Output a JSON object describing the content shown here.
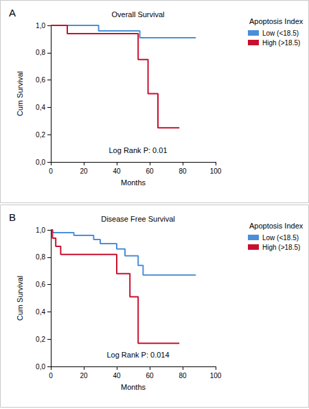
{
  "chart_data": [
    {
      "type": "line",
      "label": "A",
      "title": "Overall Survival",
      "x_label": "Months",
      "y_label": "Cum Survival",
      "legend_title": "Apoptosis Index",
      "legend": "right",
      "annotations": [
        "Log Rank P: 0.01"
      ],
      "line_style": "step",
      "grid": false,
      "xlim": [
        0,
        100
      ],
      "xticks": [
        0,
        20,
        40,
        60,
        80,
        100
      ],
      "ylim": [
        0,
        1
      ],
      "yticks": [
        {
          "value": 0,
          "label": "0,0"
        },
        {
          "value": 0.2,
          "label": "0,2"
        },
        {
          "value": 0.4,
          "label": "0,4"
        },
        {
          "value": 0.6,
          "label": "0,6"
        },
        {
          "value": 0.8,
          "label": "0,8"
        },
        {
          "value": 1,
          "label": "1,0"
        }
      ],
      "series": [
        {
          "name": "Low (<18.5)",
          "color": "#4a8fd8",
          "x": [
            0,
            29,
            54,
            88
          ],
          "values": [
            1.0,
            0.96,
            0.91,
            0.91
          ]
        },
        {
          "name": "High (>18.5)",
          "color": "#c8102e",
          "x": [
            0,
            10,
            53,
            59,
            65,
            78
          ],
          "values": [
            1.0,
            0.94,
            0.75,
            0.5,
            0.25,
            0.25
          ]
        }
      ]
    },
    {
      "type": "line",
      "label": "B",
      "title": "Disease Free Survival",
      "x_label": "Months",
      "y_label": "Cum Survival",
      "legend_title": "Apoptosis Index",
      "legend": "right",
      "annotations": [
        "Log Rank P: 0.014"
      ],
      "line_style": "step",
      "grid": false,
      "xlim": [
        0,
        100
      ],
      "xticks": [
        0,
        20,
        40,
        60,
        80,
        100
      ],
      "ylim": [
        0,
        1
      ],
      "yticks": [
        {
          "value": 0,
          "label": "0,0"
        },
        {
          "value": 0.2,
          "label": "0,2"
        },
        {
          "value": 0.4,
          "label": "0,4"
        },
        {
          "value": 0.6,
          "label": "0,6"
        },
        {
          "value": 0.8,
          "label": "0,8"
        },
        {
          "value": 1,
          "label": "1,0"
        }
      ],
      "series": [
        {
          "name": "Low (<18.5)",
          "color": "#4a8fd8",
          "x": [
            0,
            1,
            14,
            26,
            30,
            40,
            45,
            53,
            56,
            88
          ],
          "values": [
            1.0,
            0.98,
            0.96,
            0.93,
            0.9,
            0.86,
            0.81,
            0.74,
            0.67,
            0.67
          ]
        },
        {
          "name": "High (>18.5)",
          "color": "#c8102e",
          "x": [
            0,
            1,
            3,
            6,
            40,
            48,
            53,
            78
          ],
          "values": [
            1.0,
            0.94,
            0.88,
            0.82,
            0.68,
            0.51,
            0.17,
            0.17
          ]
        }
      ]
    }
  ]
}
